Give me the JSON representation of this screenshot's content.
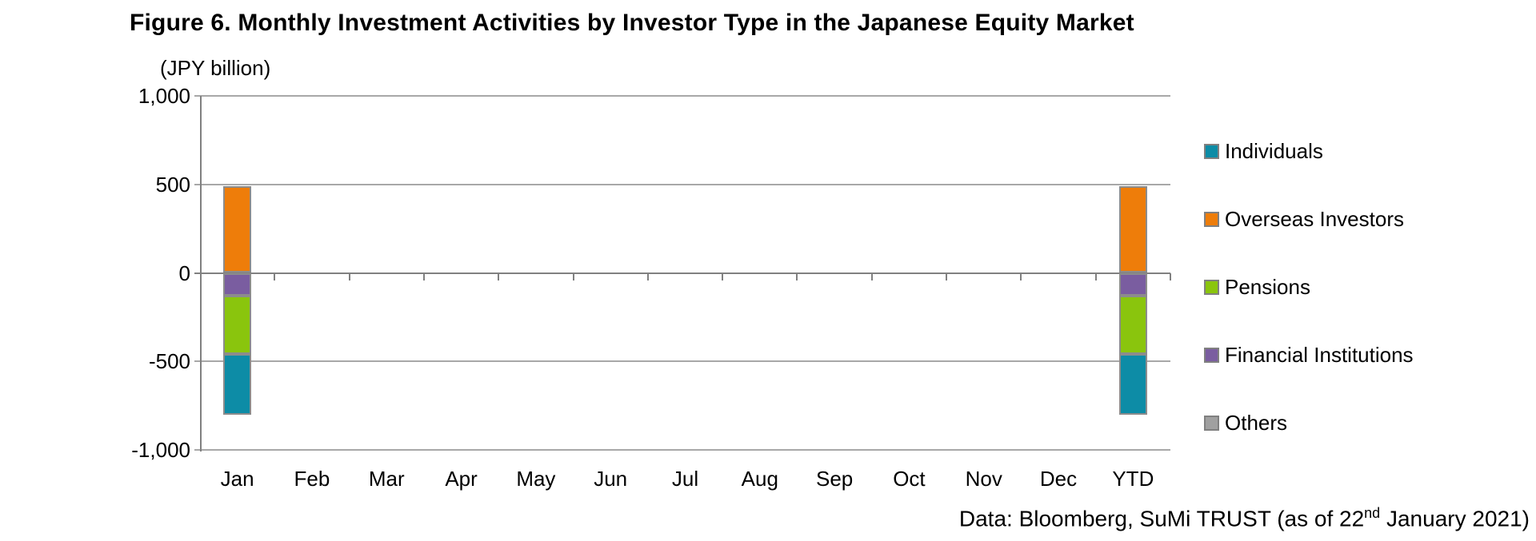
{
  "title": "Figure 6. Monthly Investment Activities by Investor Type in the Japanese Equity Market",
  "footer": {
    "prefix": "Data: Bloomberg, SuMi TRUST (as of 22",
    "superscript": "nd",
    "suffix": " January 2021)"
  },
  "chart_data": {
    "type": "bar",
    "stacked": true,
    "title": "Figure 6. Monthly Investment Activities by Investor Type in the Japanese Equity Market",
    "unit_label": "(JPY billion)",
    "categories": [
      "Jan",
      "Feb",
      "Mar",
      "Apr",
      "May",
      "Jun",
      "Jul",
      "Aug",
      "Sep",
      "Oct",
      "Nov",
      "Dec",
      "YTD"
    ],
    "ylim": [
      -1000,
      1000
    ],
    "yticks": [
      {
        "value": 1000,
        "label": "1,000"
      },
      {
        "value": 500,
        "label": "500"
      },
      {
        "value": 0,
        "label": "0"
      },
      {
        "value": -500,
        "label": "-500"
      },
      {
        "value": -1000,
        "label": "-1,000"
      }
    ],
    "grid": true,
    "legend_position": "right",
    "series": [
      {
        "name": "Individuals",
        "color": "#0D8CA6",
        "values": [
          -340,
          0,
          0,
          0,
          0,
          0,
          0,
          0,
          0,
          0,
          0,
          0,
          -340
        ]
      },
      {
        "name": "Overseas Investors",
        "color": "#EE7D0A",
        "values": [
          490,
          0,
          0,
          0,
          0,
          0,
          0,
          0,
          0,
          0,
          0,
          0,
          490
        ]
      },
      {
        "name": "Pensions",
        "color": "#8AC50D",
        "values": [
          -330,
          0,
          0,
          0,
          0,
          0,
          0,
          0,
          0,
          0,
          0,
          0,
          -330
        ]
      },
      {
        "name": "Financial Institutions",
        "color": "#7A5DA0",
        "values": [
          -130,
          0,
          0,
          0,
          0,
          0,
          0,
          0,
          0,
          0,
          0,
          0,
          -130
        ]
      },
      {
        "name": "Others",
        "color": "#A0A0A0",
        "values": [
          0,
          0,
          0,
          0,
          0,
          0,
          0,
          0,
          0,
          0,
          0,
          0,
          0
        ]
      }
    ],
    "style_colors": {
      "gridline": "#A8A8A8",
      "axis": "#808080",
      "bar_border": "#8C8C8C",
      "text": "#000000"
    }
  }
}
